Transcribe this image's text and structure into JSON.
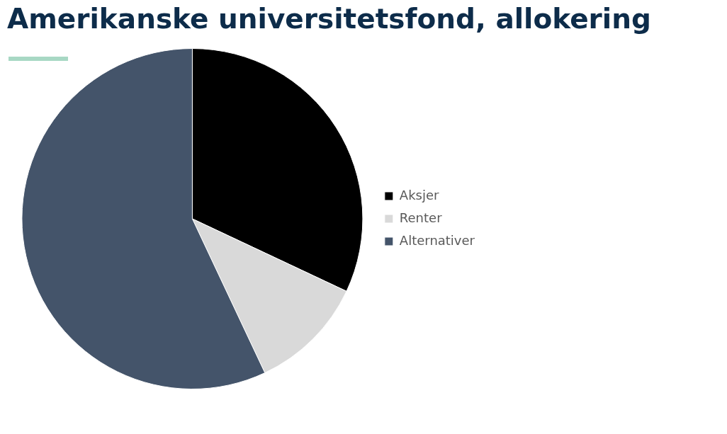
{
  "chart_data": {
    "type": "pie",
    "title": "Amerikanske universitetsfond, allokering",
    "categories": [
      "Aksjer",
      "Renter",
      "Alternativer"
    ],
    "values": [
      32,
      11,
      57
    ],
    "colors": [
      "#000000",
      "#d9d9d9",
      "#44546a"
    ],
    "legend": "right"
  }
}
